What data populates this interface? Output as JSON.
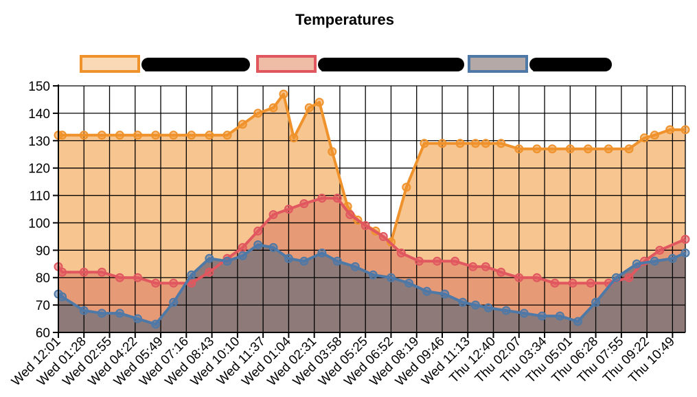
{
  "chart_data": {
    "type": "area",
    "title": "Temperatures",
    "xlabel": "",
    "ylabel": "",
    "ylim": [
      60,
      150
    ],
    "yticks": [
      60,
      70,
      80,
      90,
      100,
      110,
      120,
      130,
      140,
      150
    ],
    "grid": true,
    "legend_position": "top",
    "xtick_labels": [
      "Wed 12:01",
      "Wed 01:28",
      "Wed 02:55",
      "Wed 04:22",
      "Wed 05:49",
      "Wed 07:16",
      "Wed 08:43",
      "Wed 10:10",
      "Wed 11:37",
      "Wed 01:04",
      "Wed 02:31",
      "Wed 03:58",
      "Wed 05:25",
      "Wed 06:52",
      "Wed 08:19",
      "Wed 09:46",
      "Wed 11:13",
      "Thu 12:40",
      "Thu 02:07",
      "Thu 03:34",
      "Thu 05:01",
      "Thu 06:28",
      "Thu 07:55",
      "Thu 09:22",
      "Thu 10:49"
    ],
    "x_range": [
      0,
      24.5
    ],
    "series": [
      {
        "name": "[redacted]",
        "color": "#f0922b",
        "fill": "#f7c58f",
        "x": [
          0,
          0.15,
          1,
          1.7,
          2.4,
          3.1,
          3.8,
          4.5,
          5.2,
          5.9,
          6.6,
          7.2,
          7.8,
          8.4,
          8.8,
          9.2,
          9.8,
          10.2,
          10.7,
          11.3,
          11.7,
          12.4,
          13.0,
          13.6,
          14.3,
          15.0,
          15.7,
          16.3,
          16.7,
          17.3,
          18.0,
          18.7,
          19.3,
          20.0,
          20.7,
          21.5,
          22.3,
          22.9,
          23.3,
          23.9,
          24.5
        ],
        "values": [
          132,
          132,
          132,
          132,
          132,
          132,
          132,
          132,
          132,
          132,
          132,
          136,
          140,
          142,
          147,
          131,
          142,
          144,
          126,
          106,
          101,
          97,
          93,
          113,
          129,
          129,
          129,
          129,
          129,
          129,
          127,
          127,
          127,
          127,
          127,
          127,
          127,
          131,
          132,
          134,
          134
        ]
      },
      {
        "name": "[redacted]",
        "color": "#e1575f",
        "fill": "#e69a75",
        "x": [
          0,
          0.15,
          1,
          1.7,
          2.4,
          3.1,
          3.8,
          4.5,
          5.2,
          5.9,
          6.6,
          7.2,
          7.8,
          8.4,
          9.0,
          9.6,
          10.3,
          10.9,
          11.4,
          12.0,
          12.7,
          13.4,
          14.1,
          14.8,
          15.5,
          16.2,
          16.7,
          17.3,
          18.0,
          18.7,
          19.4,
          20.1,
          20.8,
          21.5,
          22.3,
          22.9,
          23.5,
          24.5
        ],
        "values": [
          84,
          82,
          82,
          82,
          80,
          80,
          78,
          78,
          78,
          82,
          87,
          91,
          97,
          103,
          105,
          107,
          109,
          109,
          103,
          99,
          95,
          89,
          86,
          86,
          86,
          84,
          84,
          82,
          80,
          80,
          78,
          78,
          78,
          78,
          80,
          86,
          90,
          94
        ]
      },
      {
        "name": "[redacted]",
        "color": "#4e79a7",
        "fill": "#8e7b79",
        "x": [
          0,
          0.15,
          1,
          1.7,
          2.4,
          3.1,
          3.8,
          4.5,
          5.2,
          5.9,
          6.6,
          7.2,
          7.8,
          8.4,
          9.0,
          9.6,
          10.3,
          10.9,
          11.6,
          12.3,
          13.0,
          13.7,
          14.4,
          15.1,
          15.8,
          16.3,
          16.8,
          17.5,
          18.2,
          18.9,
          19.6,
          20.3,
          21.0,
          21.8,
          22.6,
          23.3,
          24.0,
          24.5
        ],
        "values": [
          74,
          73,
          68,
          67,
          67,
          65,
          63,
          71,
          81,
          87,
          86,
          88,
          92,
          91,
          87,
          86,
          89,
          86,
          84,
          81,
          80,
          78,
          75,
          74,
          71,
          70,
          69,
          68,
          67,
          66,
          66,
          64,
          71,
          80,
          85,
          86,
          87,
          89
        ]
      }
    ]
  }
}
